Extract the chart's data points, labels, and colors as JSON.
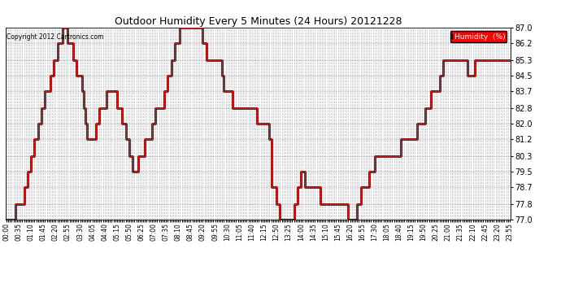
{
  "title": "Outdoor Humidity Every 5 Minutes (24 Hours) 20121228",
  "copyright": "Copyright 2012 Cartronics.com",
  "legend_label": "Humidity  (%)",
  "line_color": "#FF0000",
  "dark_line_color": "#000000",
  "bg_color": "#FFFFFF",
  "grid_color": "#999999",
  "ylim": [
    77.0,
    87.0
  ],
  "yticks": [
    77.0,
    77.8,
    78.7,
    79.5,
    80.3,
    81.2,
    82.0,
    82.8,
    83.7,
    84.5,
    85.3,
    86.2,
    87.0
  ],
  "x_label_every": 7,
  "humidity_data": [
    77.0,
    77.0,
    77.0,
    77.0,
    77.0,
    77.8,
    77.8,
    77.8,
    77.8,
    77.8,
    78.7,
    78.7,
    79.5,
    79.5,
    80.3,
    80.3,
    81.2,
    81.2,
    82.0,
    82.0,
    82.8,
    82.8,
    83.7,
    83.7,
    83.7,
    84.5,
    84.5,
    85.3,
    85.3,
    86.2,
    86.2,
    86.2,
    87.0,
    87.0,
    87.0,
    86.2,
    86.2,
    86.2,
    85.3,
    85.3,
    84.5,
    84.5,
    84.5,
    83.7,
    82.8,
    82.0,
    81.2,
    81.2,
    81.2,
    81.2,
    81.2,
    82.0,
    82.0,
    82.8,
    82.8,
    82.8,
    82.8,
    83.7,
    83.7,
    83.7,
    83.7,
    83.7,
    83.7,
    82.8,
    82.8,
    82.8,
    82.0,
    82.0,
    81.2,
    81.2,
    80.3,
    80.3,
    79.5,
    79.5,
    79.5,
    80.3,
    80.3,
    80.3,
    80.3,
    81.2,
    81.2,
    81.2,
    81.2,
    82.0,
    82.0,
    82.8,
    82.8,
    82.8,
    82.8,
    82.8,
    83.7,
    83.7,
    84.5,
    84.5,
    85.3,
    85.3,
    86.2,
    86.2,
    86.2,
    87.0,
    87.0,
    87.0,
    87.0,
    87.0,
    87.0,
    87.0,
    87.0,
    87.0,
    87.0,
    87.0,
    87.0,
    87.0,
    86.2,
    86.2,
    85.3,
    85.3,
    85.3,
    85.3,
    85.3,
    85.3,
    85.3,
    85.3,
    85.3,
    84.5,
    83.7,
    83.7,
    83.7,
    83.7,
    83.7,
    82.8,
    82.8,
    82.8,
    82.8,
    82.8,
    82.8,
    82.8,
    82.8,
    82.8,
    82.8,
    82.8,
    82.8,
    82.8,
    82.8,
    82.0,
    82.0,
    82.0,
    82.0,
    82.0,
    82.0,
    82.0,
    81.2,
    78.7,
    78.7,
    78.7,
    77.8,
    77.8,
    77.0,
    77.0,
    77.0,
    77.0,
    77.0,
    77.0,
    77.0,
    77.0,
    77.8,
    77.8,
    78.7,
    78.7,
    79.5,
    79.5,
    78.7,
    78.7,
    78.7,
    78.7,
    78.7,
    78.7,
    78.7,
    78.7,
    78.7,
    77.8,
    77.8,
    77.8,
    77.8,
    77.8,
    77.8,
    77.8,
    77.8,
    77.8,
    77.8,
    77.8,
    77.8,
    77.8,
    77.8,
    77.8,
    77.8,
    77.0,
    77.0,
    77.0,
    77.0,
    77.0,
    77.8,
    77.8,
    78.7,
    78.7,
    78.7,
    78.7,
    78.7,
    79.5,
    79.5,
    79.5,
    80.3,
    80.3,
    80.3,
    80.3,
    80.3,
    80.3,
    80.3,
    80.3,
    80.3,
    80.3,
    80.3,
    80.3,
    80.3,
    80.3,
    80.3,
    81.2,
    81.2,
    81.2,
    81.2,
    81.2,
    81.2,
    81.2,
    81.2,
    81.2,
    82.0,
    82.0,
    82.0,
    82.0,
    82.0,
    82.8,
    82.8,
    82.8,
    83.7,
    83.7,
    83.7,
    83.7,
    83.7,
    84.5,
    84.5,
    85.3,
    85.3,
    85.3,
    85.3,
    85.3,
    85.3,
    85.3,
    85.3,
    85.3,
    85.3,
    85.3,
    85.3,
    85.3,
    85.3,
    84.5,
    84.5,
    84.5,
    84.5,
    85.3,
    85.3,
    85.3,
    85.3,
    85.3,
    85.3,
    85.3,
    85.3,
    85.3,
    85.3,
    85.3,
    85.3,
    85.3,
    85.3,
    85.3,
    85.3,
    85.3,
    85.3,
    85.3,
    85.3,
    85.3
  ]
}
